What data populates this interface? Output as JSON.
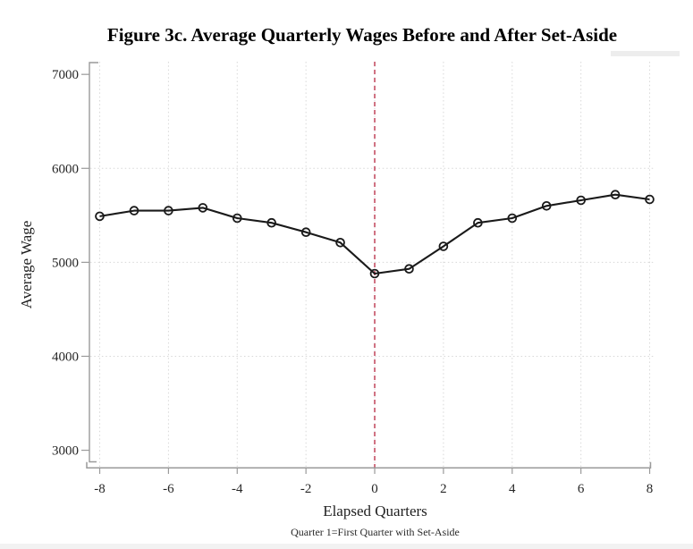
{
  "chart_data": {
    "type": "line",
    "title": "Figure 3c. Average Quarterly Wages Before and After Set-Aside",
    "xlabel": "Elapsed Quarters",
    "ylabel": "Average Wage",
    "note": "Quarter 1=First Quarter with Set-Aside",
    "x": [
      -8,
      -7,
      -6,
      -5,
      -4,
      -3,
      -2,
      -1,
      0,
      1,
      2,
      3,
      4,
      5,
      6,
      7,
      8
    ],
    "series": [
      {
        "name": "Average Wage",
        "values": [
          5490,
          5550,
          5550,
          5580,
          5470,
          5420,
          5320,
          5210,
          4880,
          4930,
          5170,
          5420,
          5470,
          5600,
          5660,
          5720,
          5670
        ]
      }
    ],
    "xticks": [
      -8,
      -6,
      -4,
      -2,
      0,
      2,
      4,
      6,
      8
    ],
    "yticks": [
      3000,
      4000,
      5000,
      6000,
      7000
    ],
    "xlim": [
      -8.3,
      8.35
    ],
    "ylim": [
      2815,
      7135
    ],
    "grid": true,
    "grid_x_at_ticks": true,
    "grid_y_at": [
      4000,
      5000,
      6000
    ],
    "legend": "none",
    "reference_line": {
      "x": 0,
      "style": "dashed",
      "color": "#c44f63"
    },
    "marker": "hollow-circle",
    "colors": {
      "line": "#1a1a1a",
      "axis": "#9a9a9a",
      "grid": "#d8d8d8",
      "tick_label": "#262626",
      "reference": "#c44f63"
    }
  }
}
